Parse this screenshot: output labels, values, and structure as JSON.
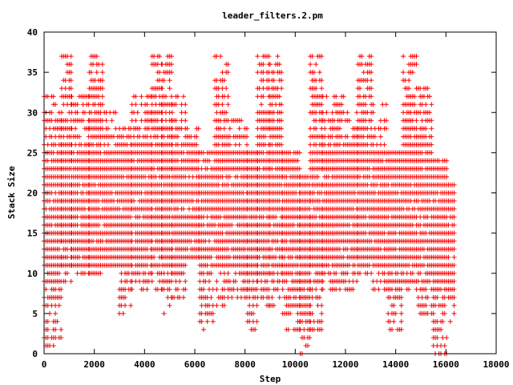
{
  "chart_data": {
    "type": "scatter",
    "title": "leader_filters.2.pm",
    "xlabel": "Step",
    "ylabel": "Stack Size",
    "xlim": [
      0,
      18000
    ],
    "ylim": [
      0,
      40
    ],
    "xticks": [
      "0",
      "2000",
      "4000",
      "6000",
      "8000",
      "10000",
      "12000",
      "14000",
      "16000",
      "18000"
    ],
    "yticks": [
      "0",
      "5",
      "10",
      "15",
      "20",
      "25",
      "30",
      "35",
      "40"
    ],
    "grid": false,
    "legend": "none",
    "marker": "plus",
    "color": "#ff0000",
    "x_step": 75,
    "segments": [
      {
        "x0": 0,
        "x1": 700,
        "y_low": 1,
        "y_high": 32
      },
      {
        "x0": 700,
        "x1": 1100,
        "y_low": 9,
        "y_high": 37
      },
      {
        "x0": 1100,
        "x1": 1800,
        "y_low": 10,
        "y_high": 32
      },
      {
        "x0": 1800,
        "x1": 2400,
        "y_low": 10,
        "y_high": 37
      },
      {
        "x0": 2400,
        "x1": 3000,
        "y_low": 11,
        "y_high": 30
      },
      {
        "x0": 3000,
        "x1": 3500,
        "y_low": 5,
        "y_high": 28
      },
      {
        "x0": 3500,
        "x1": 4300,
        "y_low": 8,
        "y_high": 32
      },
      {
        "x0": 4300,
        "x1": 4700,
        "y_low": 8,
        "y_high": 37
      },
      {
        "x0": 4700,
        "x1": 5100,
        "y_low": 5,
        "y_high": 37
      },
      {
        "x0": 5100,
        "x1": 5700,
        "y_low": 7,
        "y_high": 32
      },
      {
        "x0": 5700,
        "x1": 6200,
        "y_low": 12,
        "y_high": 28
      },
      {
        "x0": 6200,
        "x1": 6800,
        "y_low": 3,
        "y_high": 25
      },
      {
        "x0": 6800,
        "x1": 7400,
        "y_low": 6,
        "y_high": 37
      },
      {
        "x0": 7400,
        "x1": 8100,
        "y_low": 7,
        "y_high": 29
      },
      {
        "x0": 8100,
        "x1": 8500,
        "y_low": 3,
        "y_high": 25
      },
      {
        "x0": 8500,
        "x1": 9000,
        "y_low": 6,
        "y_high": 37
      },
      {
        "x0": 9000,
        "x1": 9500,
        "y_low": 6,
        "y_high": 37
      },
      {
        "x0": 9500,
        "x1": 10200,
        "y_low": 3,
        "y_high": 25
      },
      {
        "x0": 10200,
        "x1": 10600,
        "y_low": 0,
        "y_high": 22
      },
      {
        "x0": 10600,
        "x1": 11100,
        "y_low": 3,
        "y_high": 37
      },
      {
        "x0": 11100,
        "x1": 12000,
        "y_low": 8,
        "y_high": 32
      },
      {
        "x0": 12000,
        "x1": 12500,
        "y_low": 8,
        "y_high": 30
      },
      {
        "x0": 12500,
        "x1": 13100,
        "y_low": 10,
        "y_high": 37
      },
      {
        "x0": 13100,
        "x1": 13700,
        "y_low": 8,
        "y_high": 31
      },
      {
        "x0": 13700,
        "x1": 14300,
        "y_low": 3,
        "y_high": 25
      },
      {
        "x0": 14300,
        "x1": 14900,
        "y_low": 8,
        "y_high": 37
      },
      {
        "x0": 14900,
        "x1": 15500,
        "y_low": 5,
        "y_high": 33
      },
      {
        "x0": 15500,
        "x1": 16100,
        "y_low": 0,
        "y_high": 24
      },
      {
        "x0": 16100,
        "x1": 16400,
        "y_low": 4,
        "y_high": 21
      }
    ]
  }
}
